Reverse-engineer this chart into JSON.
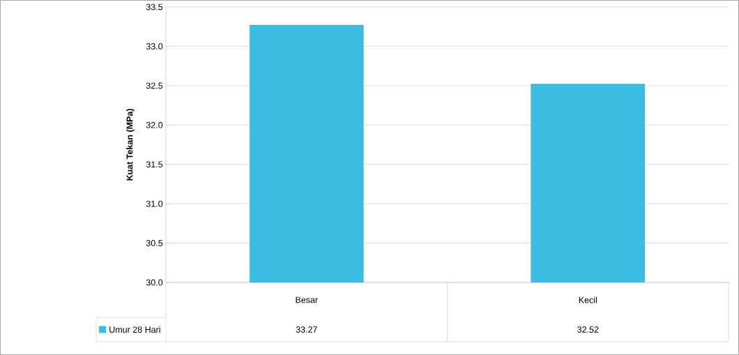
{
  "chart_data": {
    "type": "bar",
    "ylabel": "Kuat Tekan (MPa)",
    "categories": [
      "Besar",
      "Kecil"
    ],
    "series": [
      {
        "name": "Umur 28 Hari",
        "color": "#3bbde3",
        "values": [
          33.27,
          32.52
        ]
      }
    ],
    "ylim": [
      30,
      33.5
    ],
    "yticks": [
      {
        "value": 30,
        "label": "30.0"
      },
      {
        "value": 30.5,
        "label": "30.5"
      },
      {
        "value": 31,
        "label": "31.0"
      },
      {
        "value": 31.5,
        "label": "31.5"
      },
      {
        "value": 32,
        "label": "32.0"
      },
      {
        "value": 32.5,
        "label": "32.5"
      },
      {
        "value": 33,
        "label": "33.0"
      },
      {
        "value": 33.5,
        "label": "33.5"
      }
    ],
    "grid": "y",
    "legend": "bottom left",
    "data_labels": true
  }
}
